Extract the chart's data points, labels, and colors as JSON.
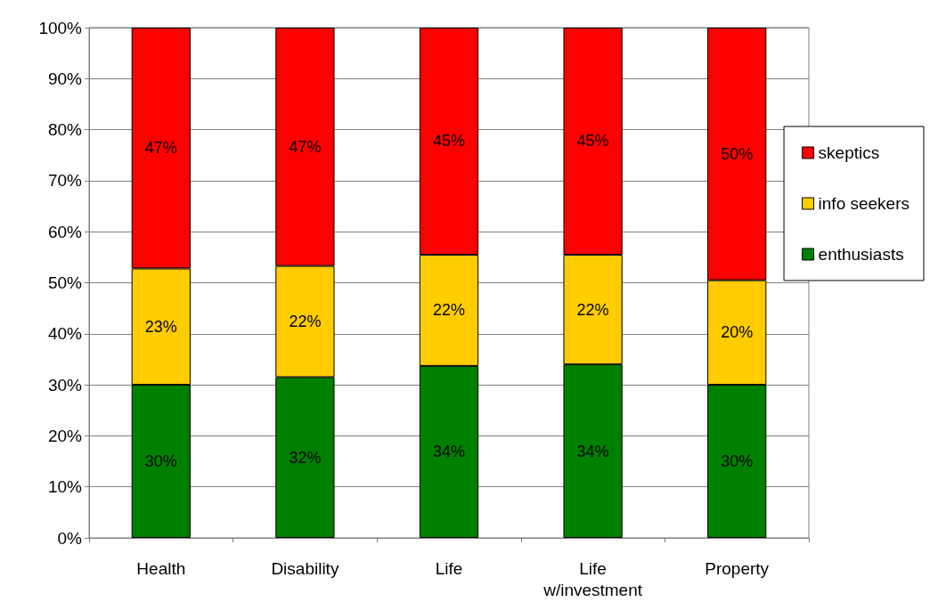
{
  "chart_data": {
    "type": "bar",
    "stacked": true,
    "categories": [
      "Health",
      "Disability",
      "Life",
      "Life\nw/investment",
      "Property"
    ],
    "series": [
      {
        "name": "enthusiasts",
        "color": "#008000",
        "values": [
          30,
          31.5,
          33.7,
          34,
          30
        ],
        "value_labels": [
          "30%",
          "32%",
          "34%",
          "34%",
          "30%"
        ]
      },
      {
        "name": "info seekers",
        "color": "#ffcc00",
        "values": [
          22.8,
          21.8,
          21.8,
          21.5,
          20.5
        ],
        "value_labels": [
          "23%",
          "22%",
          "22%",
          "22%",
          "20%"
        ]
      },
      {
        "name": "skeptics",
        "color": "#ff0000",
        "values": [
          47.2,
          46.7,
          44.5,
          44.5,
          49.5
        ],
        "value_labels": [
          "47%",
          "47%",
          "45%",
          "45%",
          "50%"
        ]
      }
    ],
    "ylim": [
      0,
      100
    ],
    "yticks": [
      {
        "value": 0,
        "label": "0%"
      },
      {
        "value": 10,
        "label": "10%"
      },
      {
        "value": 20,
        "label": "20%"
      },
      {
        "value": 30,
        "label": "30%"
      },
      {
        "value": 40,
        "label": "40%"
      },
      {
        "value": 50,
        "label": "50%"
      },
      {
        "value": 60,
        "label": "60%"
      },
      {
        "value": 70,
        "label": "70%"
      },
      {
        "value": 80,
        "label": "80%"
      },
      {
        "value": 90,
        "label": "90%"
      },
      {
        "value": 100,
        "label": "100%"
      }
    ],
    "grid": "y",
    "legend": "right"
  }
}
